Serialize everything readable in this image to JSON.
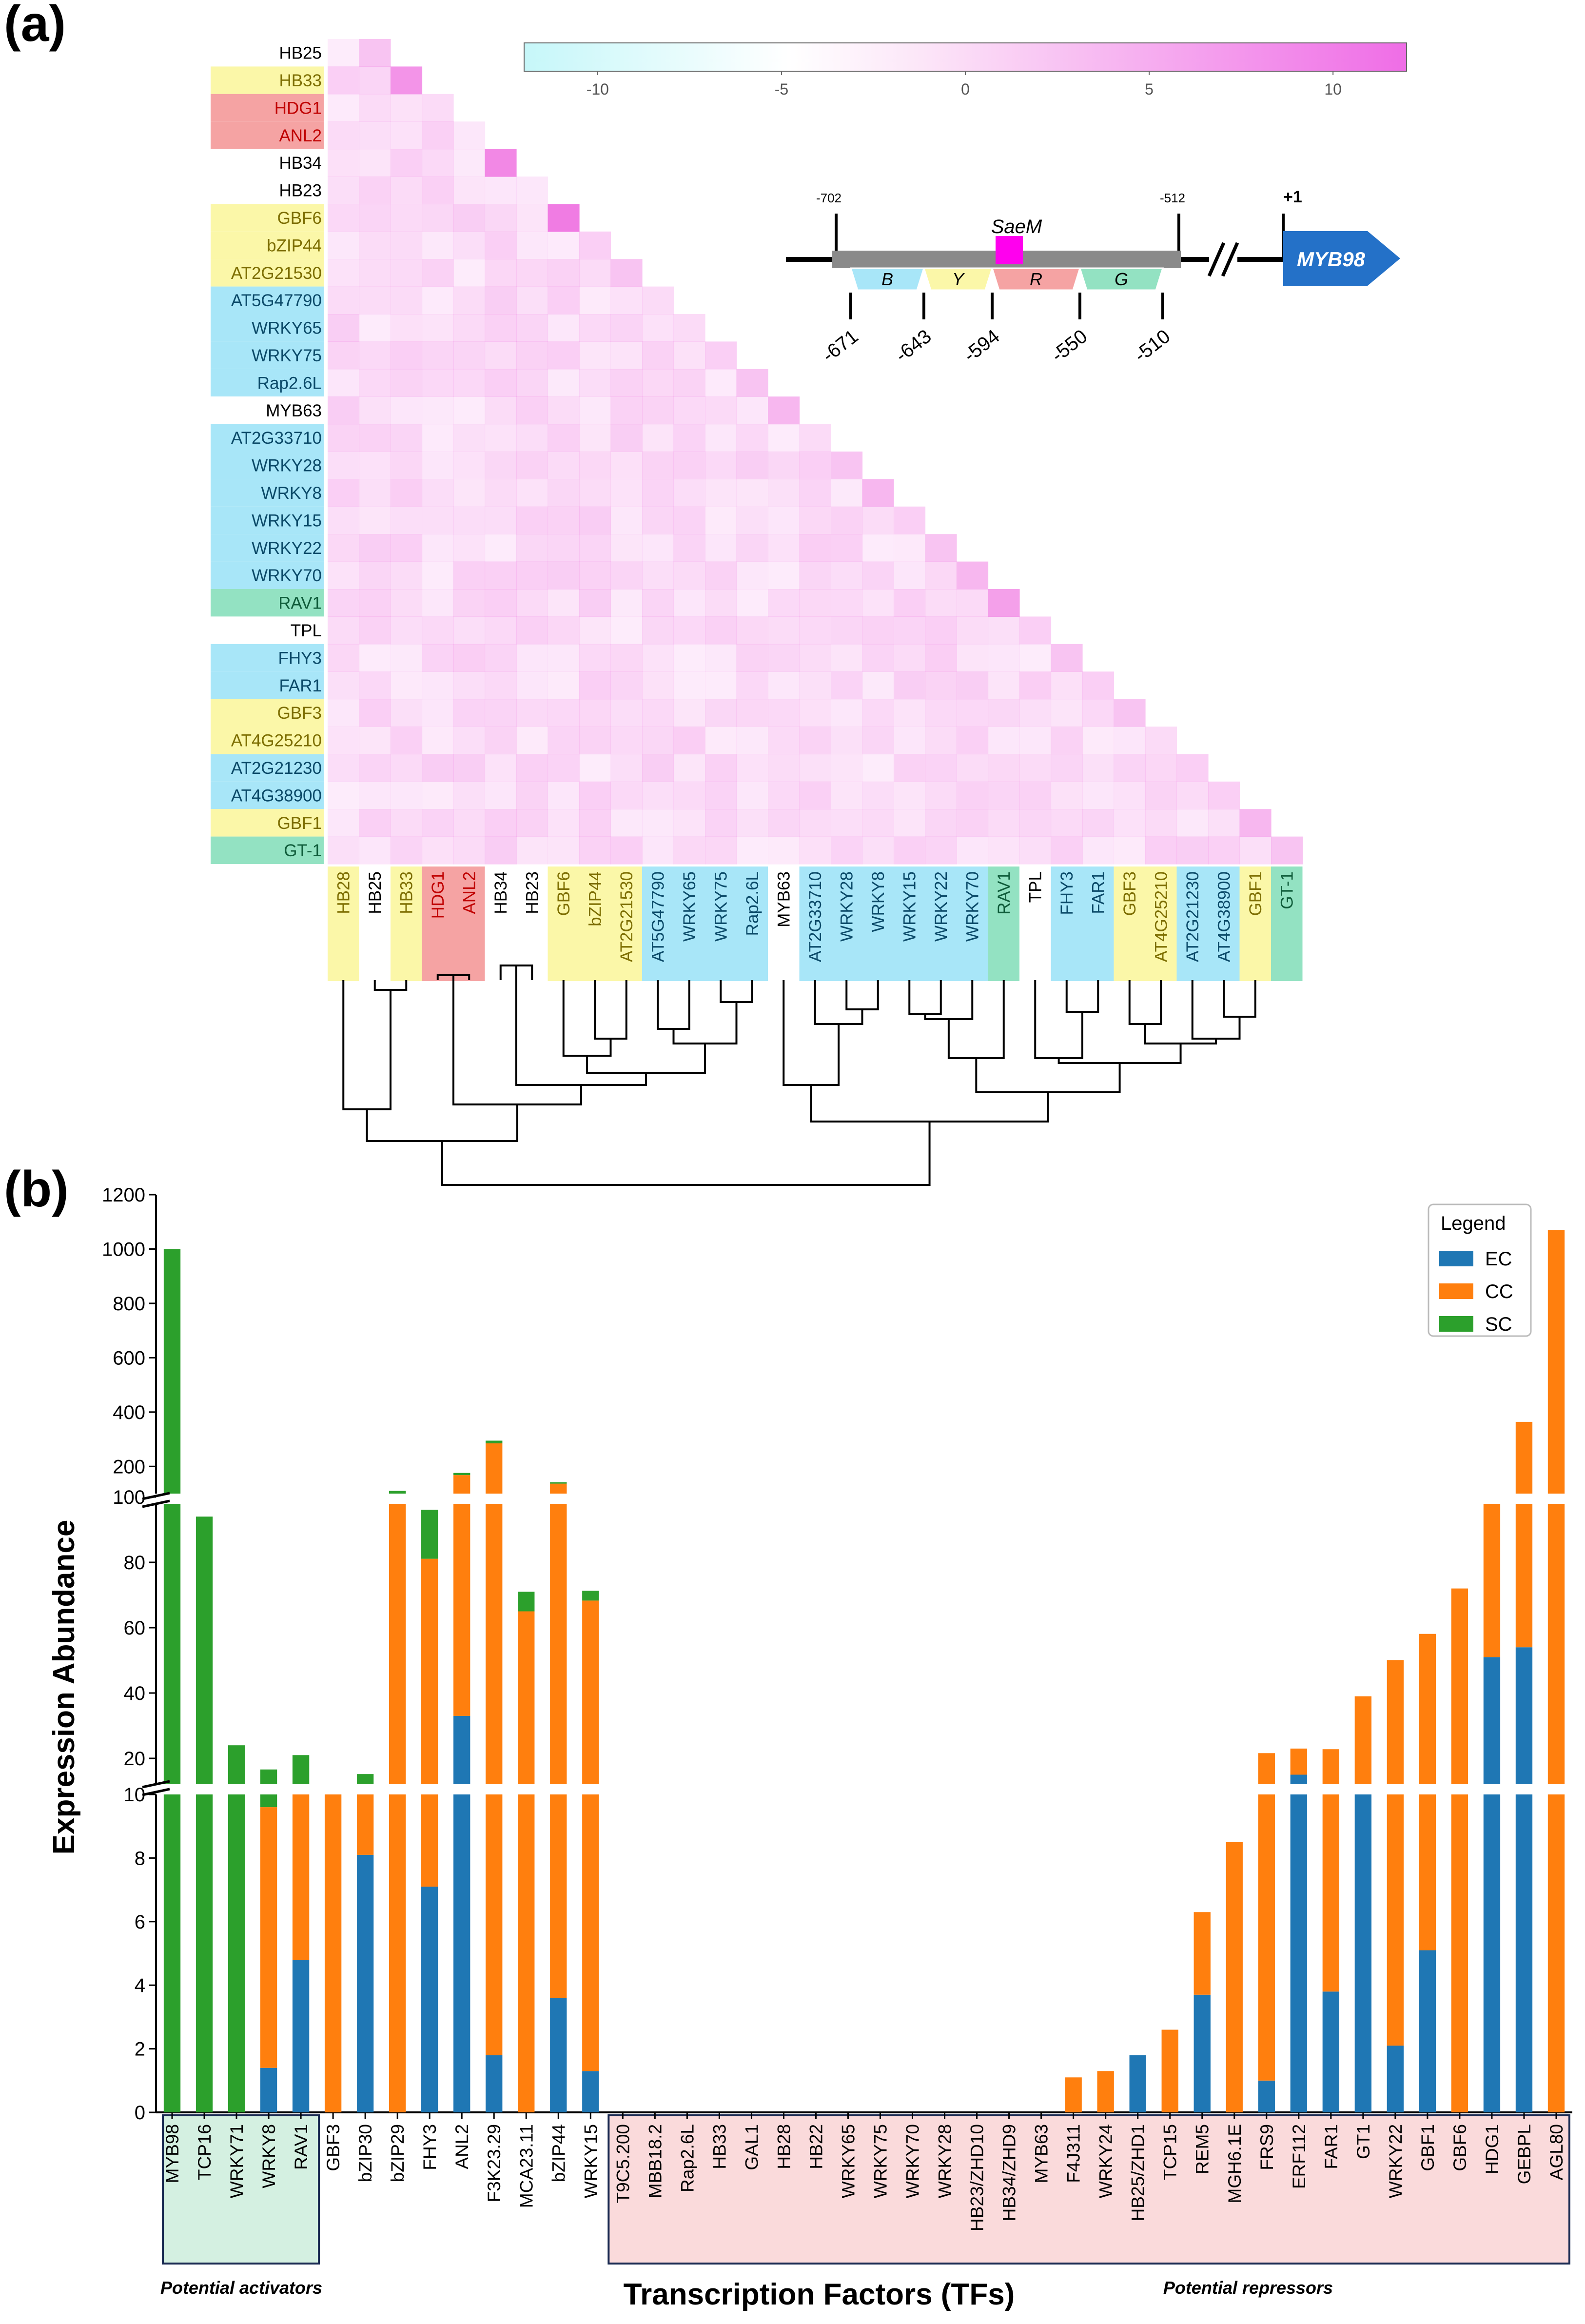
{
  "panel_a": {
    "label": "(a)",
    "colorbar": {
      "ticks": [
        "-10",
        "-5",
        "0",
        "5",
        "10"
      ],
      "values": [
        -10,
        -5,
        0,
        5,
        10
      ],
      "range": [
        -12,
        12
      ]
    },
    "colors": {
      "yellow": "#fbf7a8",
      "red": "#f5a3a3",
      "blue": "#a8e6f8",
      "green": "#93e2c2",
      "none": "#ffffff",
      "text_yellow": "#7d6e00",
      "text_red": "#c00000",
      "text_blue": "#0b4a69",
      "text_green": "#0f5c3a",
      "text_none": "#000000",
      "heat": "#ef70e0",
      "myb_arrow": "#2471c8",
      "saem_box": "#ff00ee"
    },
    "row_labels": [
      "HB25",
      "HB33",
      "HDG1",
      "ANL2",
      "HB34",
      "HB23",
      "GBF6",
      "bZIP44",
      "AT2G21530",
      "AT5G47790",
      "WRKY65",
      "WRKY75",
      "Rap2.6L",
      "MYB63",
      "AT2G33710",
      "WRKY28",
      "WRKY8",
      "WRKY15",
      "WRKY22",
      "WRKY70",
      "RAV1",
      "TPL",
      "FHY3",
      "FAR1",
      "GBF3",
      "AT4G25210",
      "AT2G21230",
      "AT4G38900",
      "GBF1",
      "GT-1"
    ],
    "row_groups": [
      "none",
      "yellow",
      "red",
      "red",
      "none",
      "none",
      "yellow",
      "yellow",
      "yellow",
      "blue",
      "blue",
      "blue",
      "blue",
      "none",
      "blue",
      "blue",
      "blue",
      "blue",
      "blue",
      "blue",
      "green",
      "none",
      "blue",
      "blue",
      "yellow",
      "yellow",
      "blue",
      "blue",
      "yellow",
      "green"
    ],
    "col_labels": [
      "HB28",
      "HB25",
      "HB33",
      "HDG1",
      "ANL2",
      "HB34",
      "HB23",
      "GBF6",
      "bZIP44",
      "AT2G21530",
      "AT5G47790",
      "WRKY65",
      "WRKY75",
      "Rap2.6L",
      "MYB63",
      "AT2G33710",
      "WRKY28",
      "WRKY8",
      "WRKY15",
      "WRKY22",
      "WRKY70",
      "RAV1",
      "TPL",
      "FHY3",
      "FAR1",
      "GBF3",
      "AT4G25210",
      "AT2G21230",
      "AT4G38900",
      "GBF1",
      "GT-1"
    ],
    "col_groups": [
      "yellow",
      "none",
      "yellow",
      "red",
      "red",
      "none",
      "none",
      "yellow",
      "yellow",
      "yellow",
      "blue",
      "blue",
      "blue",
      "blue",
      "none",
      "blue",
      "blue",
      "blue",
      "blue",
      "blue",
      "blue",
      "green",
      "none",
      "blue",
      "blue",
      "yellow",
      "yellow",
      "blue",
      "blue",
      "yellow",
      "green"
    ],
    "diagonal_scores": [
      5,
      9,
      3,
      2,
      10,
      2,
      11,
      4,
      5,
      3,
      3,
      4,
      5,
      6,
      3,
      5,
      6,
      4,
      5,
      6,
      8,
      4,
      5,
      4,
      5,
      3,
      4,
      4,
      6,
      5
    ],
    "promoter": {
      "saem_label": "SaeM",
      "gene_label": "MYB98",
      "top_positions": [
        "-702",
        "-512",
        "+1"
      ],
      "segment_letters": [
        "B",
        "Y",
        "R",
        "G"
      ],
      "bottom_positions": [
        "-671",
        "-643",
        "-594",
        "-550",
        "-510"
      ]
    }
  },
  "panel_b": {
    "label": "(b)",
    "legend_title": "Legend",
    "legend": [
      {
        "name": "EC",
        "color": "#1f77b4"
      },
      {
        "name": "CC",
        "color": "#ff7f0e"
      },
      {
        "name": "SC",
        "color": "#2ca02c"
      }
    ],
    "axis_break_bands": [
      [
        0,
        10
      ],
      [
        10,
        100
      ],
      [
        100,
        1200
      ]
    ],
    "y_tick_labels_low": [
      "0",
      "2",
      "4",
      "6",
      "8",
      "10"
    ],
    "y_tick_labels_mid": [
      "20",
      "40",
      "60",
      "80",
      "100"
    ],
    "y_tick_labels_high": [
      "200",
      "400",
      "600",
      "800",
      "1000",
      "1200"
    ],
    "activators_label": "Potential activators",
    "repressors_label": "Potential repressors",
    "activator_box_color": "#d4f0e1",
    "repressor_box_color": "#fadadb"
  },
  "chart_data": {
    "type": "bar",
    "stacked": true,
    "ylabel": "Expression Abundance",
    "xlabel": "Transcription Factors (TFs)",
    "ylim": [
      0,
      1200
    ],
    "categories": [
      "MYB98",
      "TCP16",
      "WRKY71",
      "WRKY8",
      "RAV1",
      "GBF3",
      "bZIP30",
      "bZIP29",
      "FHY3",
      "ANL2",
      "F3K23.29",
      "MCA23.11",
      "bZIP44",
      "WRKY15",
      "T9C5.200",
      "MBB18.2",
      "Rap2.6L",
      "HB33",
      "GAL1",
      "HB28",
      "HB22",
      "WRKY65",
      "WRKY75",
      "WRKY70",
      "WRKY28",
      "HB23/ZHD10",
      "HB34/ZHD9",
      "MYB63",
      "F4J311",
      "WRKY24",
      "HB25/ZHD1",
      "TCP15",
      "REM5",
      "MGH6.1E",
      "FRS9",
      "ERF112",
      "FAR1",
      "GT1",
      "WRKY22",
      "GBF1",
      "GBF6",
      "HDG1",
      "GEBPL",
      "AGL80"
    ],
    "series": [
      {
        "name": "EC",
        "values": [
          0,
          0,
          0,
          1.4,
          4.8,
          0,
          8.1,
          0,
          7.1,
          33,
          1.8,
          0,
          3.6,
          1.3,
          0,
          0,
          0,
          0,
          0,
          0,
          0,
          0,
          0,
          0,
          0,
          0,
          0,
          0,
          0,
          0,
          1.8,
          0,
          3.7,
          0,
          1.0,
          15,
          3.8,
          11,
          2.1,
          5.1,
          0,
          51,
          54,
          0
        ]
      },
      {
        "name": "CC",
        "values": [
          0,
          0,
          0,
          8.2,
          6.2,
          10.6,
          2.1,
          100,
          74,
          135,
          283,
          65,
          133,
          67,
          0,
          0,
          0,
          0,
          0,
          0,
          0,
          0,
          0,
          0,
          0,
          0,
          0,
          0,
          1.1,
          1.3,
          0,
          2.6,
          2.6,
          8.5,
          20.6,
          8,
          19,
          28,
          48,
          53,
          72,
          47,
          310,
          1070
        ]
      },
      {
        "name": "SC",
        "values": [
          1000,
          94,
          24,
          7,
          10,
          1,
          5,
          10,
          15,
          8,
          10,
          6,
          5,
          3,
          0,
          0,
          0,
          0,
          0,
          0,
          0,
          0,
          0,
          0,
          0,
          0,
          0,
          0,
          0,
          0,
          0,
          0,
          0,
          0,
          0,
          0,
          0,
          0,
          0,
          0,
          0,
          0,
          0,
          0
        ]
      }
    ],
    "activator_count": 5,
    "repressor_start_index": 14
  }
}
